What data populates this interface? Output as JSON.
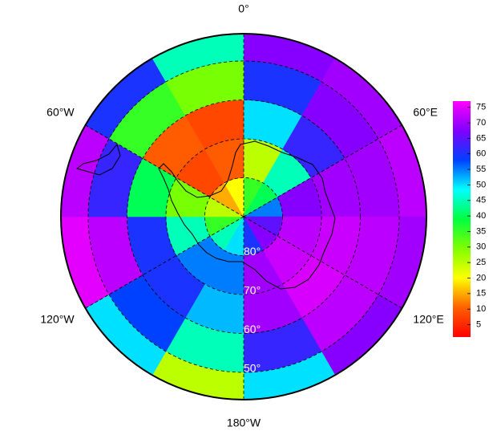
{
  "map": {
    "type": "polar-field",
    "longitude_labels": [
      {
        "value": 0,
        "label": "0°"
      },
      {
        "value": 60,
        "label": "60°E"
      },
      {
        "value": 120,
        "label": "120°E"
      },
      {
        "value": 180,
        "label": "180°W"
      },
      {
        "value": 240,
        "label": "120°W"
      },
      {
        "value": 300,
        "label": "60°W"
      }
    ],
    "latitude_labels": [
      {
        "value": 80,
        "label": "80°"
      },
      {
        "value": 70,
        "label": "70°"
      },
      {
        "value": 60,
        "label": "60°"
      },
      {
        "value": 50,
        "label": "50°"
      }
    ],
    "field": {
      "lat_edges": [
        90,
        80,
        70,
        60,
        50,
        43
      ],
      "lon_edges": [
        0,
        30,
        60,
        90,
        120,
        150,
        180,
        210,
        240,
        270,
        300,
        330,
        360
      ],
      "values": [
        [
          35,
          40,
          55,
          65,
          68,
          60,
          50,
          45,
          35,
          25,
          15,
          20
        ],
        [
          25,
          45,
          68,
          72,
          73,
          70,
          55,
          55,
          45,
          30,
          8,
          10
        ],
        [
          50,
          62,
          70,
          73,
          74,
          70,
          52,
          60,
          60,
          40,
          10,
          8
        ],
        [
          60,
          68,
          70,
          72,
          72,
          62,
          45,
          58,
          72,
          62,
          35,
          30
        ],
        [
          68,
          70,
          72,
          70,
          68,
          50,
          25,
          50,
          75,
          72,
          60,
          45
        ]
      ]
    },
    "colorbar": {
      "clim": [
        1,
        77
      ],
      "ticks": [
        5,
        10,
        15,
        20,
        25,
        30,
        35,
        40,
        45,
        50,
        55,
        60,
        65,
        70,
        75
      ],
      "colormap": [
        "#ff0000",
        "#ff6000",
        "#ffff00",
        "#80ff00",
        "#00ff40",
        "#00ffff",
        "#0040ff",
        "#8000ff",
        "#ff00ff"
      ]
    }
  }
}
